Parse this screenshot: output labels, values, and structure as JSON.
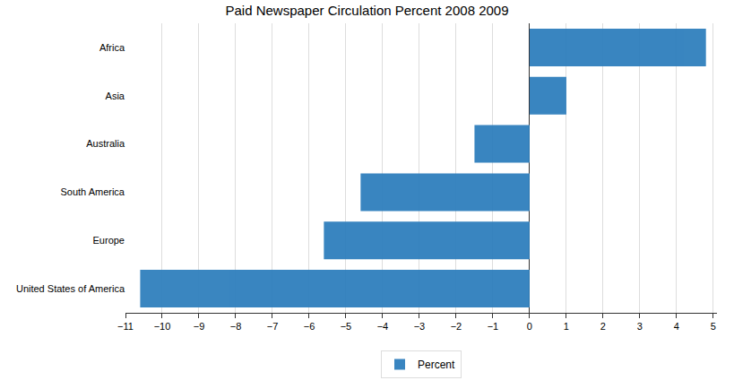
{
  "chart_data": {
    "type": "bar",
    "orientation": "horizontal",
    "title": "Paid Newspaper Circulation Percent 2008 2009",
    "categories": [
      "Africa",
      "Asia",
      "Australia",
      "South America",
      "Europe",
      "United States of America"
    ],
    "series": [
      {
        "name": "Percent",
        "color": "#2f7fbd",
        "values": [
          4.8,
          1.0,
          -1.5,
          -4.6,
          -5.6,
          -10.6
        ]
      }
    ],
    "xlim": [
      -11,
      5.1
    ],
    "xticks": [
      -11,
      -10,
      -9,
      -8,
      -7,
      -6,
      -5,
      -4,
      -3,
      -2,
      -1,
      0,
      1,
      2,
      3,
      4,
      5
    ],
    "grid": true,
    "legend": "bottom"
  }
}
